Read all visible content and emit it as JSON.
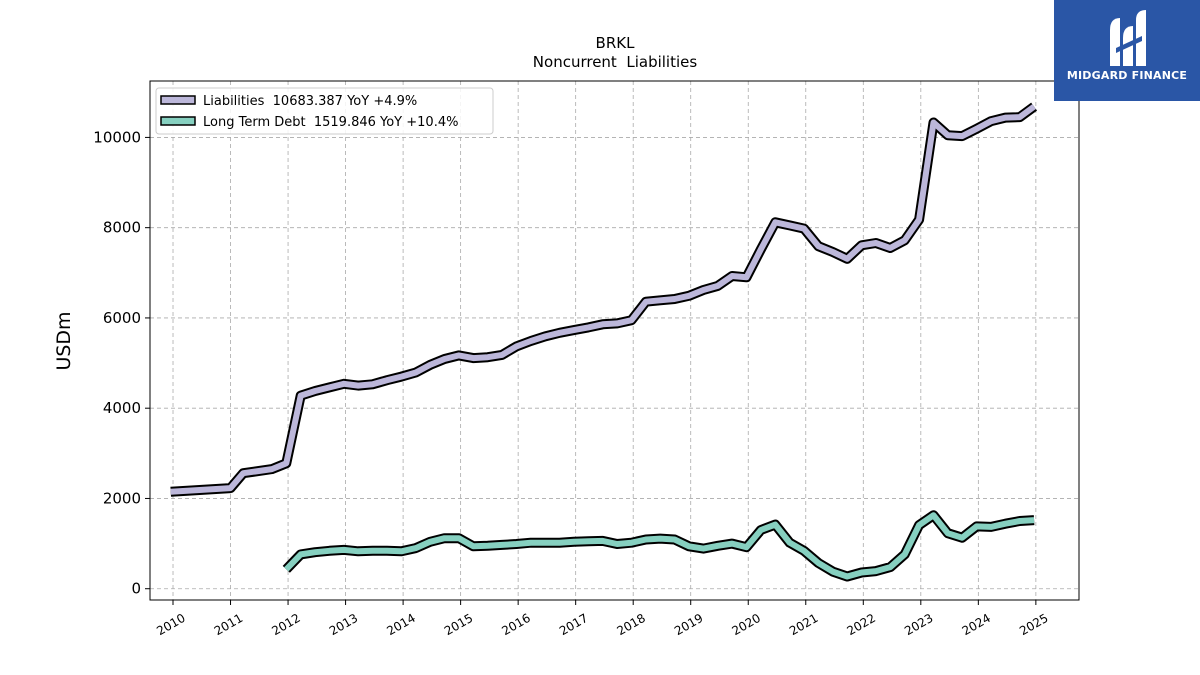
{
  "brand": {
    "name": "MIDGARD FINANCE",
    "bg_color": "#2a56a6"
  },
  "chart_data": {
    "type": "line",
    "title": "BRKL",
    "subtitle": "Noncurrent  Liabilities",
    "ylabel": "USDm",
    "xlabel": "",
    "xlim": [
      2009.6,
      2025.75
    ],
    "ylim": [
      -250,
      11250
    ],
    "yticks": [
      0,
      2000,
      4000,
      6000,
      8000,
      10000
    ],
    "xticks": [
      "2010",
      "2011",
      "2012",
      "2013",
      "2014",
      "2015",
      "2016",
      "2017",
      "2018",
      "2019",
      "2020",
      "2021",
      "2022",
      "2023",
      "2024",
      "2025"
    ],
    "grid": true,
    "legend_position": "top-left",
    "series": [
      {
        "name": "Liabilities",
        "legend_label": "Liabilities  10683.387 YoY +4.9%",
        "color": "#bcb7da",
        "points": [
          [
            2009.96,
            2150
          ],
          [
            2011.0,
            2230
          ],
          [
            2011.22,
            2560
          ],
          [
            2011.72,
            2650
          ],
          [
            2011.97,
            2780
          ],
          [
            2012.22,
            4280
          ],
          [
            2012.47,
            4380
          ],
          [
            2012.72,
            4460
          ],
          [
            2012.97,
            4540
          ],
          [
            2013.22,
            4500
          ],
          [
            2013.47,
            4530
          ],
          [
            2013.72,
            4620
          ],
          [
            2013.97,
            4700
          ],
          [
            2014.22,
            4790
          ],
          [
            2014.47,
            4960
          ],
          [
            2014.72,
            5090
          ],
          [
            2014.97,
            5170
          ],
          [
            2015.22,
            5110
          ],
          [
            2015.47,
            5130
          ],
          [
            2015.72,
            5180
          ],
          [
            2015.97,
            5370
          ],
          [
            2016.22,
            5490
          ],
          [
            2016.47,
            5590
          ],
          [
            2016.72,
            5670
          ],
          [
            2016.97,
            5730
          ],
          [
            2017.22,
            5790
          ],
          [
            2017.47,
            5860
          ],
          [
            2017.72,
            5880
          ],
          [
            2017.97,
            5950
          ],
          [
            2018.22,
            6360
          ],
          [
            2018.47,
            6390
          ],
          [
            2018.72,
            6420
          ],
          [
            2018.97,
            6490
          ],
          [
            2019.22,
            6620
          ],
          [
            2019.47,
            6710
          ],
          [
            2019.72,
            6930
          ],
          [
            2019.97,
            6900
          ],
          [
            2020.22,
            7520
          ],
          [
            2020.47,
            8120
          ],
          [
            2020.72,
            8050
          ],
          [
            2020.97,
            7980
          ],
          [
            2021.22,
            7590
          ],
          [
            2021.47,
            7460
          ],
          [
            2021.72,
            7310
          ],
          [
            2021.97,
            7610
          ],
          [
            2022.22,
            7660
          ],
          [
            2022.47,
            7550
          ],
          [
            2022.72,
            7720
          ],
          [
            2022.97,
            8180
          ],
          [
            2023.22,
            10330
          ],
          [
            2023.47,
            10050
          ],
          [
            2023.72,
            10030
          ],
          [
            2023.97,
            10190
          ],
          [
            2024.22,
            10360
          ],
          [
            2024.47,
            10440
          ],
          [
            2024.72,
            10450
          ],
          [
            2024.97,
            10683
          ]
        ]
      },
      {
        "name": "Long Term Debt",
        "legend_label": "Long Term Debt  1519.846 YoY +10.4%",
        "color": "#86d0c0",
        "points": [
          [
            2011.97,
            430
          ],
          [
            2012.22,
            760
          ],
          [
            2012.47,
            810
          ],
          [
            2012.72,
            840
          ],
          [
            2012.97,
            860
          ],
          [
            2013.22,
            830
          ],
          [
            2013.47,
            840
          ],
          [
            2013.72,
            840
          ],
          [
            2013.97,
            830
          ],
          [
            2014.22,
            900
          ],
          [
            2014.47,
            1040
          ],
          [
            2014.72,
            1120
          ],
          [
            2014.97,
            1120
          ],
          [
            2015.22,
            940
          ],
          [
            2015.47,
            950
          ],
          [
            2015.72,
            970
          ],
          [
            2015.97,
            990
          ],
          [
            2016.22,
            1020
          ],
          [
            2016.47,
            1020
          ],
          [
            2016.72,
            1020
          ],
          [
            2016.97,
            1040
          ],
          [
            2017.22,
            1050
          ],
          [
            2017.47,
            1060
          ],
          [
            2017.72,
            990
          ],
          [
            2017.97,
            1020
          ],
          [
            2018.22,
            1090
          ],
          [
            2018.47,
            1110
          ],
          [
            2018.72,
            1090
          ],
          [
            2018.97,
            940
          ],
          [
            2019.22,
            890
          ],
          [
            2019.47,
            950
          ],
          [
            2019.72,
            1000
          ],
          [
            2019.97,
            920
          ],
          [
            2020.22,
            1300
          ],
          [
            2020.47,
            1420
          ],
          [
            2020.72,
            1020
          ],
          [
            2020.97,
            840
          ],
          [
            2021.22,
            570
          ],
          [
            2021.47,
            380
          ],
          [
            2021.72,
            270
          ],
          [
            2021.97,
            360
          ],
          [
            2022.22,
            390
          ],
          [
            2022.47,
            480
          ],
          [
            2022.72,
            760
          ],
          [
            2022.97,
            1410
          ],
          [
            2023.22,
            1630
          ],
          [
            2023.47,
            1230
          ],
          [
            2023.72,
            1130
          ],
          [
            2023.97,
            1380
          ],
          [
            2024.22,
            1370
          ],
          [
            2024.47,
            1440
          ],
          [
            2024.72,
            1500
          ],
          [
            2024.97,
            1520
          ]
        ]
      }
    ]
  }
}
